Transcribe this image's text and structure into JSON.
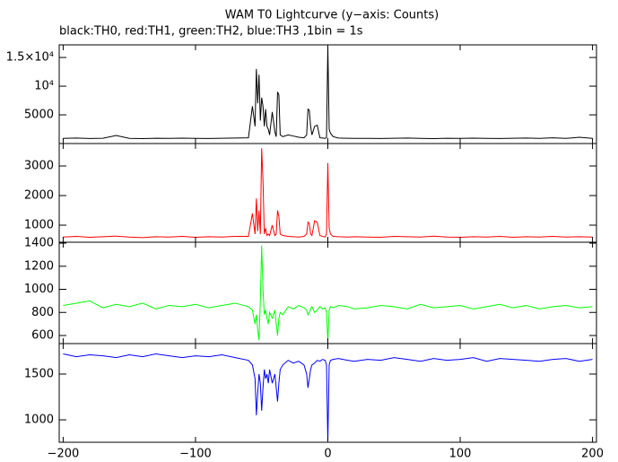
{
  "chart_data": [
    {
      "type": "line",
      "title": "WAM T0 Lightcurve (y−axis: Counts)",
      "subtitle": "black:TH0, red:TH1, green:TH2, blue:TH3 ,1bin = 1s",
      "color": "#000000",
      "x": [
        -200,
        -190,
        -180,
        -170,
        -160,
        -150,
        -140,
        -130,
        -120,
        -110,
        -100,
        -90,
        -80,
        -70,
        -60,
        -57,
        -55,
        -54,
        -53,
        -52,
        -51,
        -50,
        -49,
        -48,
        -47,
        -46,
        -45,
        -44,
        -42,
        -40,
        -39,
        -38,
        -37,
        -36,
        -34,
        -30,
        -26,
        -22,
        -18,
        -16,
        -15,
        -14,
        -13,
        -12,
        -10,
        -8,
        -6,
        -4,
        -2,
        -1,
        0,
        1,
        2,
        4,
        8,
        15,
        20,
        30,
        40,
        50,
        60,
        70,
        80,
        90,
        100,
        110,
        120,
        130,
        140,
        150,
        160,
        170,
        180,
        190,
        200
      ],
      "values": [
        900,
        950,
        880,
        920,
        1400,
        900,
        870,
        910,
        890,
        930,
        900,
        880,
        920,
        950,
        1000,
        6500,
        3000,
        13000,
        7000,
        12000,
        4000,
        8000,
        6500,
        3000,
        6000,
        3000,
        2500,
        1500,
        5500,
        2000,
        1200,
        9000,
        8500,
        1500,
        1200,
        1500,
        1300,
        1100,
        1000,
        1500,
        6000,
        5800,
        3000,
        1500,
        3000,
        3200,
        1000,
        950,
        900,
        1000,
        17000,
        2500,
        1800,
        1200,
        950,
        920,
        900,
        900,
        880,
        920,
        950,
        900,
        870,
        910,
        890,
        930,
        900,
        880,
        920,
        950,
        900,
        1000,
        890,
        1100,
        900
      ],
      "xlim": [
        -203,
        203
      ],
      "ylim": [
        0,
        17200
      ],
      "yticks": [
        {
          "value": 5000,
          "label": "5000"
        },
        {
          "value": 10000,
          "label": "10⁴"
        },
        {
          "value": 15000,
          "label": "1.5×10⁴"
        }
      ]
    },
    {
      "type": "line",
      "color": "#ff0000",
      "x": [
        -200,
        -190,
        -180,
        -170,
        -160,
        -150,
        -140,
        -130,
        -120,
        -110,
        -100,
        -90,
        -80,
        -70,
        -60,
        -57,
        -55,
        -54,
        -53,
        -52,
        -51,
        -50,
        -49,
        -48,
        -47,
        -46,
        -45,
        -44,
        -42,
        -40,
        -39,
        -38,
        -37,
        -36,
        -34,
        -30,
        -26,
        -22,
        -18,
        -16,
        -15,
        -14,
        -13,
        -12,
        -10,
        -8,
        -6,
        -4,
        -2,
        -1,
        0,
        1,
        2,
        4,
        8,
        15,
        20,
        30,
        40,
        50,
        60,
        70,
        80,
        90,
        100,
        110,
        120,
        130,
        140,
        150,
        160,
        170,
        180,
        190,
        200
      ],
      "values": [
        600,
        620,
        590,
        610,
        630,
        600,
        580,
        610,
        600,
        620,
        590,
        610,
        600,
        620,
        620,
        1400,
        700,
        1900,
        800,
        1500,
        700,
        3600,
        2500,
        700,
        900,
        650,
        700,
        650,
        1000,
        650,
        700,
        1500,
        1300,
        700,
        650,
        620,
        610,
        600,
        620,
        700,
        1100,
        1050,
        700,
        650,
        1150,
        1100,
        650,
        620,
        600,
        700,
        3100,
        900,
        700,
        620,
        610,
        600,
        610,
        600,
        590,
        620,
        610,
        600,
        630,
        600,
        590,
        610,
        600,
        620,
        590,
        610,
        600,
        620,
        600,
        610,
        600
      ],
      "xlim": [
        -203,
        203
      ],
      "ylim": [
        424,
        3758
      ],
      "yticks": [
        1000,
        2000,
        3000
      ]
    },
    {
      "type": "line",
      "color": "#00ff00",
      "x": [
        -200,
        -190,
        -180,
        -170,
        -160,
        -150,
        -140,
        -130,
        -120,
        -110,
        -100,
        -90,
        -80,
        -70,
        -60,
        -57,
        -55,
        -54,
        -53,
        -52,
        -51,
        -50,
        -49,
        -48,
        -47,
        -46,
        -45,
        -44,
        -42,
        -40,
        -39,
        -38,
        -37,
        -36,
        -34,
        -30,
        -26,
        -22,
        -18,
        -16,
        -15,
        -14,
        -13,
        -12,
        -10,
        -8,
        -6,
        -4,
        -2,
        -1,
        0,
        1,
        2,
        4,
        8,
        15,
        20,
        30,
        40,
        50,
        60,
        70,
        80,
        90,
        100,
        110,
        120,
        130,
        140,
        150,
        160,
        170,
        180,
        190,
        200
      ],
      "values": [
        860,
        880,
        900,
        840,
        870,
        850,
        880,
        830,
        860,
        850,
        870,
        840,
        860,
        880,
        850,
        820,
        700,
        780,
        650,
        560,
        900,
        1380,
        1000,
        780,
        820,
        750,
        700,
        800,
        750,
        820,
        700,
        600,
        750,
        800,
        780,
        850,
        830,
        860,
        840,
        820,
        780,
        800,
        830,
        850,
        800,
        820,
        850,
        830,
        840,
        800,
        550,
        820,
        850,
        840,
        860,
        850,
        830,
        840,
        860,
        850,
        830,
        870,
        840,
        850,
        860,
        830,
        850,
        870,
        840,
        860,
        830,
        850,
        860,
        840,
        850
      ],
      "xlim": [
        -203,
        203
      ],
      "ylim": [
        530,
        1408
      ],
      "yticks": [
        600,
        800,
        1000,
        1200,
        1400
      ]
    },
    {
      "type": "line",
      "color": "#0000ff",
      "x": [
        -200,
        -190,
        -180,
        -170,
        -160,
        -150,
        -140,
        -130,
        -120,
        -110,
        -100,
        -90,
        -80,
        -70,
        -60,
        -57,
        -55,
        -54,
        -53,
        -52,
        -51,
        -50,
        -49,
        -48,
        -47,
        -46,
        -45,
        -44,
        -42,
        -40,
        -39,
        -38,
        -37,
        -36,
        -34,
        -30,
        -26,
        -22,
        -18,
        -16,
        -15,
        -14,
        -13,
        -12,
        -10,
        -8,
        -6,
        -4,
        -2,
        -1,
        0,
        1,
        2,
        4,
        8,
        15,
        20,
        30,
        40,
        50,
        60,
        70,
        80,
        90,
        100,
        110,
        120,
        130,
        140,
        150,
        160,
        170,
        180,
        190,
        200
      ],
      "values": [
        1720,
        1690,
        1710,
        1700,
        1680,
        1710,
        1690,
        1720,
        1700,
        1680,
        1700,
        1690,
        1710,
        1680,
        1650,
        1600,
        1450,
        1050,
        1300,
        1500,
        1400,
        1100,
        1350,
        1550,
        1450,
        1500,
        1400,
        1550,
        1400,
        1500,
        1350,
        1200,
        1400,
        1550,
        1600,
        1650,
        1620,
        1640,
        1600,
        1500,
        1350,
        1450,
        1550,
        1600,
        1620,
        1650,
        1640,
        1660,
        1650,
        1600,
        750,
        1600,
        1650,
        1660,
        1670,
        1650,
        1640,
        1660,
        1650,
        1680,
        1660,
        1640,
        1670,
        1650,
        1660,
        1680,
        1640,
        1670,
        1660,
        1650,
        1640,
        1660,
        1670,
        1640,
        1660
      ],
      "xlim": [
        -203,
        203
      ],
      "ylim": [
        755,
        1833
      ],
      "yticks": [
        1000,
        1500
      ],
      "xticks": [
        {
          "value": -200,
          "label": "−200"
        },
        {
          "value": -100,
          "label": "−100"
        },
        0,
        100,
        200
      ]
    }
  ]
}
